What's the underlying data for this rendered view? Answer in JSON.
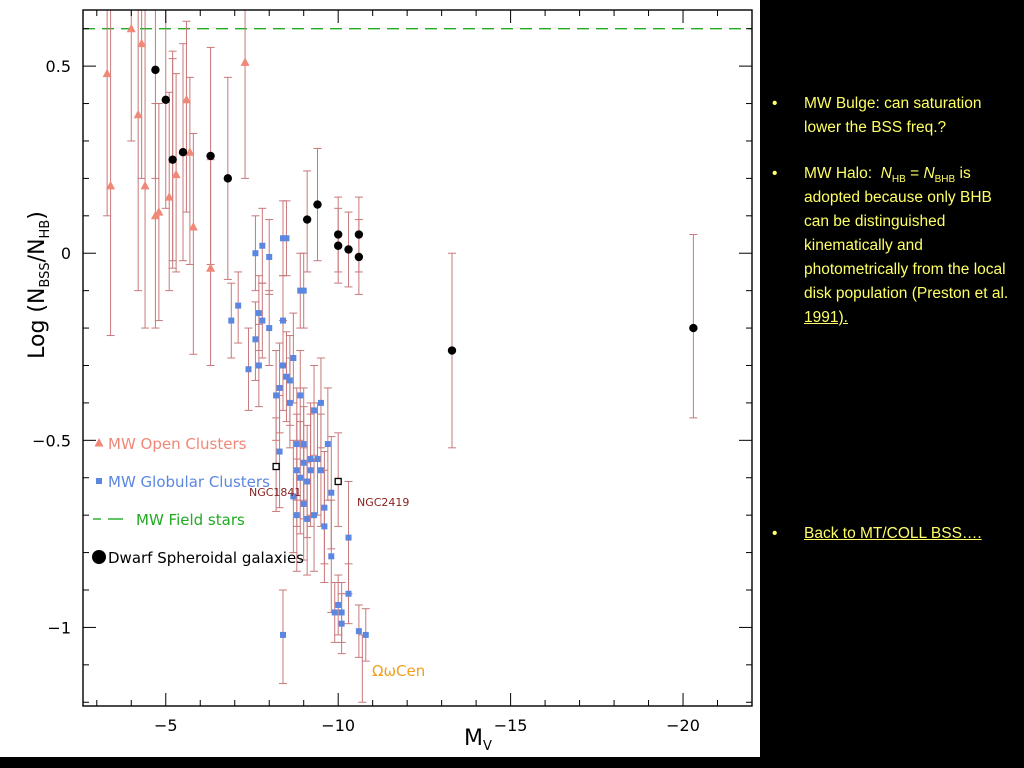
{
  "chart_data": {
    "type": "scatter",
    "xlabel": "M",
    "xlabel_sub": "V",
    "ylabel": "Log",
    "ylabel_num": "N",
    "ylabel_num_sub": "BSS",
    "ylabel_den": "N",
    "ylabel_den_sub": "HB",
    "xlim": [
      -2.6,
      -22.0
    ],
    "ylim": [
      -1.21,
      0.65
    ],
    "x_ticks": [
      {
        "value": -5,
        "label": "−5"
      },
      {
        "value": -10,
        "label": "−10"
      },
      {
        "value": -15,
        "label": "−15"
      },
      {
        "value": -20,
        "label": "−20"
      }
    ],
    "y_ticks": [
      {
        "value": 0.5,
        "label": "0.5"
      },
      {
        "value": 0,
        "label": "0"
      },
      {
        "value": -0.5,
        "label": "−0.5"
      },
      {
        "value": -1,
        "label": "−1"
      }
    ],
    "field_stars_level": 0.6,
    "series": [
      {
        "name": "MW Open Clusters",
        "marker": "triangle",
        "color": "#f08878",
        "points": [
          {
            "x": -3.3,
            "y": 0.48,
            "lo": 0.1,
            "hi": 0.65
          },
          {
            "x": -3.4,
            "y": 0.18,
            "lo": -0.22,
            "hi": 0.65
          },
          {
            "x": -4.0,
            "y": 0.6,
            "lo": 0.3,
            "hi": 0.65
          },
          {
            "x": -4.2,
            "y": 0.37,
            "lo": -0.1,
            "hi": 0.65
          },
          {
            "x": -4.3,
            "y": 0.56,
            "lo": 0.2,
            "hi": 0.65
          },
          {
            "x": -4.4,
            "y": 0.18,
            "lo": -0.2,
            "hi": 0.65
          },
          {
            "x": -4.7,
            "y": 0.1,
            "lo": -0.2,
            "hi": 0.4
          },
          {
            "x": -4.8,
            "y": 0.11,
            "lo": -0.18,
            "hi": 0.4
          },
          {
            "x": -5.1,
            "y": 0.15,
            "lo": -0.1,
            "hi": 0.43
          },
          {
            "x": -5.2,
            "y": 0.25,
            "lo": -0.02,
            "hi": 0.52
          },
          {
            "x": -5.3,
            "y": 0.21,
            "lo": -0.05,
            "hi": 0.48
          },
          {
            "x": -5.6,
            "y": 0.41,
            "lo": 0.11,
            "hi": 0.62
          },
          {
            "x": -5.7,
            "y": 0.27,
            "lo": -0.03,
            "hi": 0.47
          },
          {
            "x": -5.8,
            "y": 0.07,
            "lo": -0.27,
            "hi": 0.32
          },
          {
            "x": -6.3,
            "y": -0.04,
            "lo": -0.3,
            "hi": 0.25
          },
          {
            "x": -7.3,
            "y": 0.51,
            "lo": 0.2,
            "hi": 0.65
          }
        ]
      },
      {
        "name": "MW Globular Clusters",
        "marker": "square",
        "color": "#5b87e0",
        "points": [
          {
            "x": -6.9,
            "y": -0.18,
            "lo": -0.28,
            "hi": -0.08
          },
          {
            "x": -7.1,
            "y": -0.14,
            "lo": -0.24,
            "hi": -0.05
          },
          {
            "x": -7.4,
            "y": -0.31,
            "lo": -0.42,
            "hi": -0.2
          },
          {
            "x": -7.6,
            "y": 0.0,
            "lo": -0.1,
            "hi": 0.1
          },
          {
            "x": -7.6,
            "y": -0.23,
            "lo": -0.34,
            "hi": -0.13
          },
          {
            "x": -7.7,
            "y": -0.16,
            "lo": -0.26,
            "hi": -0.06
          },
          {
            "x": -7.7,
            "y": -0.3,
            "lo": -0.41,
            "hi": -0.19
          },
          {
            "x": -7.8,
            "y": 0.02,
            "lo": -0.08,
            "hi": 0.12
          },
          {
            "x": -7.8,
            "y": -0.18,
            "lo": -0.28,
            "hi": -0.08
          },
          {
            "x": -8.0,
            "y": -0.2,
            "lo": -0.3,
            "hi": -0.1
          },
          {
            "x": -8.0,
            "y": -0.01,
            "lo": -0.11,
            "hi": 0.09
          },
          {
            "x": -8.2,
            "y": -0.38,
            "lo": -0.5,
            "hi": -0.26
          },
          {
            "x": -8.3,
            "y": -0.53,
            "lo": -0.68,
            "hi": -0.38
          },
          {
            "x": -8.3,
            "y": -0.36,
            "lo": -0.48,
            "hi": -0.24
          },
          {
            "x": -8.4,
            "y": -0.3,
            "lo": -0.42,
            "hi": -0.18
          },
          {
            "x": -8.4,
            "y": -0.18,
            "lo": -0.3,
            "hi": -0.06
          },
          {
            "x": -8.4,
            "y": -1.02,
            "lo": -1.15,
            "hi": -0.9
          },
          {
            "x": -8.4,
            "y": 0.04,
            "lo": -0.06,
            "hi": 0.14
          },
          {
            "x": -8.5,
            "y": -0.33,
            "lo": -0.45,
            "hi": -0.21
          },
          {
            "x": -8.5,
            "y": 0.04,
            "lo": -0.06,
            "hi": 0.14
          },
          {
            "x": -8.6,
            "y": -0.4,
            "lo": -0.52,
            "hi": -0.28
          },
          {
            "x": -8.6,
            "y": -0.34,
            "lo": -0.46,
            "hi": -0.22
          },
          {
            "x": -8.7,
            "y": -0.65,
            "lo": -0.8,
            "hi": -0.5
          },
          {
            "x": -8.7,
            "y": -0.28,
            "lo": -0.4,
            "hi": -0.16
          },
          {
            "x": -8.8,
            "y": -0.51,
            "lo": -0.66,
            "hi": -0.36
          },
          {
            "x": -8.8,
            "y": -0.58,
            "lo": -0.73,
            "hi": -0.43
          },
          {
            "x": -8.8,
            "y": -0.7,
            "lo": -0.85,
            "hi": -0.55
          },
          {
            "x": -8.9,
            "y": -0.6,
            "lo": -0.75,
            "hi": -0.45
          },
          {
            "x": -8.9,
            "y": -0.1,
            "lo": -0.2,
            "hi": 0.0
          },
          {
            "x": -8.9,
            "y": -0.38,
            "lo": -0.5,
            "hi": -0.26
          },
          {
            "x": -9.0,
            "y": -0.1,
            "lo": -0.2,
            "hi": 0.0
          },
          {
            "x": -9.0,
            "y": -0.51,
            "lo": -0.66,
            "hi": -0.36
          },
          {
            "x": -9.0,
            "y": -0.67,
            "lo": -0.82,
            "hi": -0.52
          },
          {
            "x": -9.0,
            "y": -0.56,
            "lo": -0.71,
            "hi": -0.41
          },
          {
            "x": -9.1,
            "y": -0.61,
            "lo": -0.76,
            "hi": -0.46
          },
          {
            "x": -9.1,
            "y": -0.71,
            "lo": -0.86,
            "hi": -0.56
          },
          {
            "x": -9.2,
            "y": -0.55,
            "lo": -0.7,
            "hi": -0.4
          },
          {
            "x": -9.2,
            "y": -0.58,
            "lo": -0.73,
            "hi": -0.43
          },
          {
            "x": -9.3,
            "y": -0.42,
            "lo": -0.54,
            "hi": -0.3
          },
          {
            "x": -9.3,
            "y": -0.7,
            "lo": -0.85,
            "hi": -0.55
          },
          {
            "x": -9.4,
            "y": -0.55,
            "lo": -0.7,
            "hi": -0.4
          },
          {
            "x": -9.5,
            "y": -0.58,
            "lo": -0.73,
            "hi": -0.43
          },
          {
            "x": -9.5,
            "y": -0.4,
            "lo": -0.52,
            "hi": -0.28
          },
          {
            "x": -9.6,
            "y": -0.68,
            "lo": -0.83,
            "hi": -0.53
          },
          {
            "x": -9.6,
            "y": -0.73,
            "lo": -0.88,
            "hi": -0.58
          },
          {
            "x": -9.7,
            "y": -0.51,
            "lo": -0.66,
            "hi": -0.36
          },
          {
            "x": -9.8,
            "y": -0.64,
            "lo": -0.79,
            "hi": -0.49
          },
          {
            "x": -9.8,
            "y": -0.81,
            "lo": -0.96,
            "hi": -0.66
          },
          {
            "x": -9.9,
            "y": -0.96,
            "lo": -1.04,
            "hi": -0.88
          },
          {
            "x": -10.0,
            "y": -0.94,
            "lo": -1.02,
            "hi": -0.86
          },
          {
            "x": -10.1,
            "y": -0.99,
            "lo": -1.07,
            "hi": -0.91
          },
          {
            "x": -10.1,
            "y": -0.96,
            "lo": -1.04,
            "hi": -0.88
          },
          {
            "x": -10.3,
            "y": -0.91,
            "lo": -0.99,
            "hi": -0.83
          },
          {
            "x": -10.3,
            "y": -0.76,
            "lo": -0.91,
            "hi": -0.61
          },
          {
            "x": -10.6,
            "y": -1.01,
            "lo": -1.08,
            "hi": -0.94
          },
          {
            "x": -10.8,
            "y": -1.02,
            "lo": -1.09,
            "hi": -0.95
          }
        ]
      },
      {
        "name": "Dwarf Spheroidal galaxies",
        "marker": "circle",
        "color": "#000000",
        "points": [
          {
            "x": -4.7,
            "y": 0.49,
            "lo": 0.2,
            "hi": 0.65
          },
          {
            "x": -5.0,
            "y": 0.41,
            "lo": 0.12,
            "hi": 0.65
          },
          {
            "x": -5.2,
            "y": 0.25,
            "lo": -0.04,
            "hi": 0.54
          },
          {
            "x": -5.5,
            "y": 0.27,
            "lo": -0.02,
            "hi": 0.56
          },
          {
            "x": -6.3,
            "y": 0.26,
            "lo": -0.03,
            "hi": 0.55
          },
          {
            "x": -6.8,
            "y": 0.2,
            "lo": -0.07,
            "hi": 0.47
          },
          {
            "x": -9.1,
            "y": 0.09,
            "lo": -0.05,
            "hi": 0.22
          },
          {
            "x": -9.4,
            "y": 0.13,
            "lo": -0.02,
            "hi": 0.28
          },
          {
            "x": -10.0,
            "y": 0.05,
            "lo": -0.05,
            "hi": 0.15
          },
          {
            "x": -10.0,
            "y": 0.02,
            "lo": -0.08,
            "hi": 0.12
          },
          {
            "x": -10.3,
            "y": 0.01,
            "lo": -0.09,
            "hi": 0.11
          },
          {
            "x": -10.6,
            "y": 0.05,
            "lo": -0.05,
            "hi": 0.15
          },
          {
            "x": -10.6,
            "y": -0.01,
            "lo": -0.11,
            "hi": 0.09
          },
          {
            "x": -13.3,
            "y": -0.26,
            "lo": -0.52,
            "hi": 0.0
          },
          {
            "x": -20.3,
            "y": -0.2,
            "lo": -0.44,
            "hi": 0.05
          }
        ]
      }
    ],
    "special_points": [
      {
        "label": "NGC1841",
        "x": -8.2,
        "y": -0.57,
        "lo": -0.69,
        "hi": -0.44
      },
      {
        "label": "NGC2419",
        "x": -10.0,
        "y": -0.61,
        "lo": -0.73,
        "hi": -0.48
      }
    ],
    "annotation_omegacen": {
      "label_pre": "Ω",
      "label_mid": "ω",
      "label_post": "Cen",
      "color": "#f0a020"
    },
    "omegacen_errorbar": {
      "x": -10.7,
      "lo": -1.2,
      "hi": -1.02
    },
    "legend": {
      "position": "left",
      "items": [
        {
          "label": "MW Open Clusters",
          "marker": "triangle",
          "color": "#f08878"
        },
        {
          "label": "MW Globular Clusters",
          "marker": "square",
          "color": "#5b87e0"
        },
        {
          "label": "MW Field stars",
          "marker": "dash",
          "color": "#22aa22"
        },
        {
          "label": "Dwarf Spheroidal galaxies",
          "marker": "circle",
          "color": "#000000"
        }
      ]
    }
  },
  "bullets": {
    "item1_text": "MW Bulge: can saturation lower the BSS freq.?",
    "item2_pre": "MW Halo:  ",
    "item2_n1": "N",
    "item2_n1_sub": "HB",
    "item2_eq": " = ",
    "item2_n2": "N",
    "item2_n2_sub": "BHB",
    "item2_rest": " is adopted because only BHB can be distinguished kinematically and photometrically from the local disk population (Preston et al. ",
    "item2_link": "1991).",
    "item3_link": "Back to MT/COLL BSS….",
    "bullet_char": "•"
  },
  "colors": {
    "background": "#000000",
    "bullet_text": "#ffff66",
    "errorbar": "#c8787a",
    "field_line": "#22aa22"
  }
}
